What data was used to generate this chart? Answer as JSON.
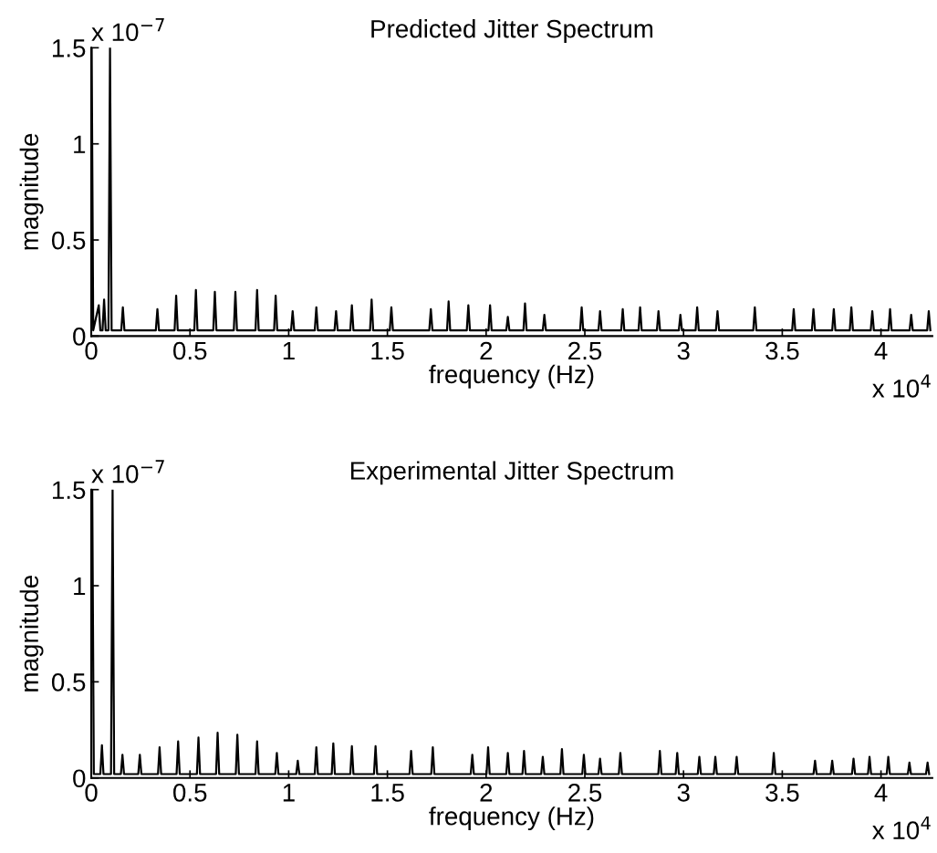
{
  "chart_data": [
    {
      "type": "line",
      "title": "Predicted Jitter Spectrum",
      "xlabel": "frequency (Hz)",
      "ylabel": "magnitude",
      "annotations": [
        "x 10$^{−7}$",
        "x 10$^{4}$"
      ],
      "xlim": [
        0,
        4.26
      ],
      "xticks": [
        0,
        0.5,
        1,
        1.5,
        2,
        2.5,
        3,
        3.5,
        4
      ],
      "ylim": [
        0,
        1.5
      ],
      "yticks": [
        0,
        0.5,
        1,
        1.5
      ],
      "series": [
        {
          "color": "#000000",
          "x": [
            0.002,
            0.01,
            0.038,
            0.046,
            0.057,
            0.065,
            0.073,
            0.087,
            0.095,
            0.103,
            0.152,
            0.16,
            0.168,
            0.327,
            0.335,
            0.343,
            0.422,
            0.43,
            0.438,
            0.522,
            0.53,
            0.538,
            0.618,
            0.626,
            0.634,
            0.722,
            0.73,
            0.738,
            0.832,
            0.84,
            0.848,
            0.926,
            0.934,
            0.942,
            1.012,
            1.02,
            1.028,
            1.132,
            1.14,
            1.148,
            1.232,
            1.24,
            1.248,
            1.312,
            1.32,
            1.328,
            1.412,
            1.42,
            1.428,
            1.512,
            1.52,
            1.528,
            1.712,
            1.72,
            1.728,
            1.802,
            1.81,
            1.818,
            1.902,
            1.91,
            1.918,
            2.012,
            2.02,
            2.028,
            2.102,
            2.11,
            2.118,
            2.189,
            2.197,
            2.205,
            2.287,
            2.295,
            2.303,
            2.476,
            2.484,
            2.492,
            2.569,
            2.577,
            2.585,
            2.684,
            2.692,
            2.7,
            2.772,
            2.78,
            2.788,
            2.865,
            2.873,
            2.881,
            2.976,
            2.984,
            2.992,
            3.061,
            3.069,
            3.077,
            3.164,
            3.172,
            3.18,
            3.353,
            3.361,
            3.369,
            3.55,
            3.558,
            3.566,
            3.65,
            3.658,
            3.666,
            3.753,
            3.761,
            3.769,
            3.842,
            3.85,
            3.858,
            3.948,
            3.956,
            3.964,
            4.038,
            4.046,
            4.054,
            4.145,
            4.153,
            4.161,
            4.234,
            4.242,
            4.25
          ],
          "values": [
            1.5,
            0.03,
            0.16,
            0.03,
            0.03,
            0.19,
            0.03,
            0.03,
            1.5,
            0.03,
            0.03,
            0.15,
            0.03,
            0.03,
            0.14,
            0.03,
            0.03,
            0.21,
            0.03,
            0.03,
            0.24,
            0.03,
            0.03,
            0.23,
            0.03,
            0.03,
            0.23,
            0.03,
            0.03,
            0.24,
            0.03,
            0.03,
            0.21,
            0.03,
            0.03,
            0.13,
            0.03,
            0.03,
            0.15,
            0.03,
            0.03,
            0.13,
            0.03,
            0.03,
            0.16,
            0.03,
            0.03,
            0.19,
            0.03,
            0.03,
            0.15,
            0.03,
            0.03,
            0.14,
            0.03,
            0.03,
            0.18,
            0.03,
            0.03,
            0.16,
            0.03,
            0.03,
            0.16,
            0.03,
            0.03,
            0.1,
            0.03,
            0.03,
            0.17,
            0.03,
            0.03,
            0.11,
            0.03,
            0.03,
            0.15,
            0.03,
            0.03,
            0.13,
            0.03,
            0.03,
            0.14,
            0.03,
            0.03,
            0.15,
            0.03,
            0.03,
            0.13,
            0.03,
            0.03,
            0.11,
            0.03,
            0.03,
            0.15,
            0.03,
            0.03,
            0.13,
            0.03,
            0.03,
            0.15,
            0.03,
            0.03,
            0.14,
            0.03,
            0.03,
            0.14,
            0.03,
            0.03,
            0.14,
            0.03,
            0.03,
            0.15,
            0.03,
            0.03,
            0.13,
            0.03,
            0.03,
            0.14,
            0.03,
            0.03,
            0.11,
            0.03,
            0.03,
            0.13,
            0.03
          ]
        }
      ]
    },
    {
      "type": "line",
      "title": "Experimental Jitter Spectrum",
      "xlabel": "frequency (Hz)",
      "ylabel": "magnitude",
      "annotations": [
        "x 10$^{−7}$",
        "x 10$^{4}$"
      ],
      "xlim": [
        0,
        4.26
      ],
      "xticks": [
        0,
        0.5,
        1,
        1.5,
        2,
        2.5,
        3,
        3.5,
        4
      ],
      "ylim": [
        0,
        1.5
      ],
      "yticks": [
        0,
        0.5,
        1,
        1.5
      ],
      "series": [
        {
          "color": "#000000",
          "x": [
            0.005,
            0.013,
            0.046,
            0.054,
            0.062,
            0.1,
            0.108,
            0.116,
            0.15,
            0.158,
            0.166,
            0.238,
            0.246,
            0.254,
            0.338,
            0.346,
            0.354,
            0.432,
            0.44,
            0.448,
            0.535,
            0.543,
            0.551,
            0.632,
            0.64,
            0.648,
            0.732,
            0.74,
            0.748,
            0.832,
            0.84,
            0.848,
            0.932,
            0.94,
            0.948,
            1.038,
            1.046,
            1.054,
            1.132,
            1.14,
            1.148,
            1.218,
            1.226,
            1.234,
            1.312,
            1.32,
            1.328,
            1.432,
            1.44,
            1.448,
            1.612,
            1.62,
            1.628,
            1.722,
            1.73,
            1.738,
            1.922,
            1.93,
            1.938,
            2.002,
            2.01,
            2.018,
            2.102,
            2.11,
            2.118,
            2.184,
            2.192,
            2.2,
            2.279,
            2.287,
            2.295,
            2.376,
            2.384,
            2.392,
            2.487,
            2.495,
            2.503,
            2.569,
            2.577,
            2.585,
            2.672,
            2.68,
            2.688,
            2.872,
            2.88,
            2.888,
            2.96,
            2.968,
            2.976,
            3.072,
            3.08,
            3.088,
            3.153,
            3.161,
            3.169,
            3.261,
            3.269,
            3.277,
            3.449,
            3.457,
            3.465,
            3.658,
            3.666,
            3.674,
            3.745,
            3.753,
            3.761,
            3.853,
            3.861,
            3.869,
            3.934,
            3.942,
            3.95,
            4.029,
            4.037,
            4.045,
            4.136,
            4.144,
            4.152,
            4.228,
            4.236,
            4.244
          ],
          "values": [
            1.5,
            0.02,
            0.02,
            0.17,
            0.02,
            0.02,
            1.5,
            0.02,
            0.02,
            0.12,
            0.02,
            0.02,
            0.12,
            0.02,
            0.02,
            0.16,
            0.02,
            0.02,
            0.19,
            0.02,
            0.02,
            0.21,
            0.02,
            0.02,
            0.235,
            0.02,
            0.02,
            0.225,
            0.02,
            0.02,
            0.19,
            0.02,
            0.02,
            0.13,
            0.02,
            0.02,
            0.09,
            0.02,
            0.02,
            0.16,
            0.02,
            0.02,
            0.18,
            0.02,
            0.02,
            0.165,
            0.02,
            0.02,
            0.165,
            0.02,
            0.02,
            0.14,
            0.02,
            0.02,
            0.16,
            0.02,
            0.02,
            0.12,
            0.02,
            0.02,
            0.16,
            0.02,
            0.02,
            0.13,
            0.02,
            0.02,
            0.14,
            0.02,
            0.02,
            0.11,
            0.02,
            0.02,
            0.15,
            0.02,
            0.02,
            0.12,
            0.02,
            0.02,
            0.1,
            0.02,
            0.02,
            0.13,
            0.02,
            0.02,
            0.14,
            0.02,
            0.02,
            0.13,
            0.02,
            0.02,
            0.11,
            0.02,
            0.02,
            0.11,
            0.02,
            0.02,
            0.11,
            0.02,
            0.02,
            0.13,
            0.02,
            0.02,
            0.09,
            0.02,
            0.02,
            0.09,
            0.02,
            0.02,
            0.1,
            0.02,
            0.02,
            0.11,
            0.02,
            0.02,
            0.11,
            0.02,
            0.02,
            0.08,
            0.02,
            0.02,
            0.08,
            0.02
          ]
        }
      ]
    }
  ]
}
